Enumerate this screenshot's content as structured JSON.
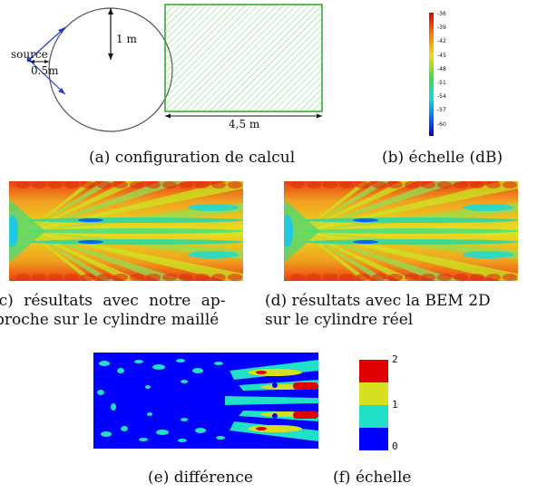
{
  "config": {
    "source_label": "source",
    "half_label": "0.5m",
    "radius_label": "1 m",
    "width_label": "4,5 m"
  },
  "scale_db": {
    "ticks": [
      "-36",
      "-39",
      "-42",
      "-45",
      "-48",
      "-51",
      "-54",
      "-57",
      "-60"
    ]
  },
  "diff_scale": {
    "ticks": [
      "2",
      "1",
      "0"
    ],
    "colors": {
      "c2": "#e00000",
      "c15": "#d6e020",
      "c1": "#20e0c8",
      "c0": "#0000ff"
    }
  },
  "captions": {
    "a": "(a) configuration de calcul",
    "b": "(b) échelle (dB)",
    "c_line1": "(c) résultats avec notre ap-",
    "c_line2": "proche sur le cylindre maillé",
    "d_line1": "(d) résultats avec la BEM 2D",
    "d_line2": "sur le cylindre réel",
    "e": "(e) différence",
    "f": "(f) échelle"
  }
}
